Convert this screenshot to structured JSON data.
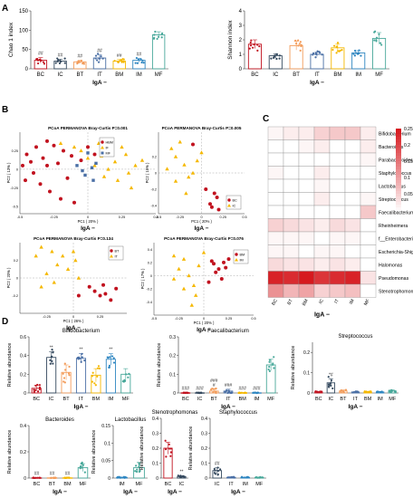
{
  "panels": {
    "A": "A",
    "B": "B",
    "C": "C",
    "D": "D"
  },
  "colors": {
    "BC": "#c1121f",
    "IC": "#34495e",
    "BT": "#f39c5a",
    "IT": "#4a6fa5",
    "BM": "#f5b800",
    "IM": "#2e86c1",
    "MF": "#48a89a"
  },
  "chart_data": [
    {
      "id": "A1",
      "type": "bar",
      "panel": "A",
      "ylabel": "Chao 1 index",
      "xlabel": "IgA −",
      "categories": [
        "BC",
        "IC",
        "BT",
        "IT",
        "BM",
        "IM",
        "MF"
      ],
      "values": [
        22,
        20,
        18,
        28,
        20,
        22,
        88
      ],
      "errors": [
        7,
        5,
        4,
        8,
        4,
        5,
        8
      ],
      "annotations": [
        "##",
        "##",
        "##",
        "##",
        "##",
        "##",
        ""
      ],
      "ylim": [
        0,
        150
      ],
      "yticks": [
        0,
        50,
        100,
        150
      ]
    },
    {
      "id": "A2",
      "type": "bar",
      "panel": "A",
      "ylabel": "Shannon index",
      "xlabel": "IgA −",
      "categories": [
        "BC",
        "IC",
        "BT",
        "IT",
        "BM",
        "IM",
        "MF"
      ],
      "values": [
        1.7,
        0.9,
        1.6,
        1.0,
        1.45,
        1.1,
        2.1
      ],
      "errors": [
        0.3,
        0.15,
        0.3,
        0.15,
        0.25,
        0.15,
        0.4
      ],
      "ylim": [
        0,
        4
      ],
      "yticks": [
        0,
        1,
        2,
        3,
        4
      ]
    },
    {
      "id": "B1",
      "type": "scatter",
      "panel": "B",
      "title": "PCoA PERMANOVA Bray-Curtis P=0.001",
      "xlabel": "PC1 ( 20% )",
      "ylabel": "PC2 ( 13% )",
      "group_label": "IgA −",
      "xlim": [
        -0.5,
        0.5
      ],
      "ylim": [
        -0.6,
        0.5
      ],
      "xticks": [
        -0.5,
        -0.25,
        0,
        0.25,
        0.5
      ],
      "yticks": [
        -0.5,
        -0.25,
        0,
        0.25
      ],
      "legend": [
        "HBM",
        "IF",
        "MF"
      ],
      "legend_colors": [
        "#c1121f",
        "#f5b800",
        "#4a6fa5"
      ],
      "series": [
        {
          "name": "HBM",
          "marker": "circle",
          "points": [
            [
              -0.45,
              0.2
            ],
            [
              -0.42,
              0.1
            ],
            [
              -0.4,
              -0.05
            ],
            [
              -0.38,
              0.3
            ],
            [
              -0.35,
              -0.2
            ],
            [
              -0.33,
              0.15
            ],
            [
              -0.3,
              0.05
            ],
            [
              -0.28,
              -0.3
            ],
            [
              -0.25,
              0.32
            ],
            [
              -0.22,
              0.08
            ],
            [
              -0.2,
              -0.4
            ],
            [
              -0.18,
              0.25
            ],
            [
              -0.15,
              -0.12
            ],
            [
              -0.12,
              0.18
            ],
            [
              -0.1,
              -0.45
            ],
            [
              -0.05,
              0.12
            ],
            [
              0.0,
              0.3
            ],
            [
              0.05,
              0.2
            ],
            [
              0.1,
              0.28
            ],
            [
              -0.48,
              0.05
            ],
            [
              -0.46,
              -0.15
            ],
            [
              -0.3,
              0.38
            ]
          ]
        },
        {
          "name": "IF",
          "marker": "triangle",
          "points": [
            [
              -0.2,
              0.35
            ],
            [
              -0.1,
              0.3
            ],
            [
              0.0,
              0.15
            ],
            [
              0.05,
              0.05
            ],
            [
              0.1,
              0.18
            ],
            [
              0.15,
              0.0
            ],
            [
              0.2,
              0.1
            ],
            [
              0.25,
              0.3
            ],
            [
              0.3,
              -0.05
            ],
            [
              0.35,
              0.05
            ],
            [
              0.4,
              0.12
            ],
            [
              0.28,
              0.2
            ],
            [
              0.18,
              0.3
            ],
            [
              -0.05,
              0.25
            ],
            [
              0.12,
              -0.1
            ],
            [
              0.22,
              -0.15
            ],
            [
              0.32,
              -0.25
            ],
            [
              0.08,
              0.35
            ]
          ]
        },
        {
          "name": "MF",
          "marker": "square",
          "points": [
            [
              -0.08,
              0.05
            ],
            [
              -0.02,
              -0.08
            ],
            [
              0.04,
              -0.15
            ],
            [
              0.0,
              0.22
            ],
            [
              0.03,
              0.02
            ],
            [
              -0.04,
              -0.02
            ],
            [
              0.06,
              0.08
            ]
          ]
        }
      ]
    },
    {
      "id": "B2",
      "type": "scatter",
      "panel": "B",
      "title": "PCoA PERMANOVA Bray-Curtis P=0.005",
      "xlabel": "PC1 ( 20% )",
      "ylabel": "PC2 ( 15% )",
      "group_label": "IgA −",
      "xlim": [
        -0.5,
        0.5
      ],
      "ylim": [
        -0.5,
        0.5
      ],
      "xticks": [
        -0.5,
        -0.25,
        0,
        0.25,
        0.5
      ],
      "yticks": [
        -0.4,
        -0.2,
        0,
        0.2
      ],
      "legend": [
        "BC",
        "IC"
      ],
      "legend_colors": [
        "#c1121f",
        "#f5b800"
      ],
      "series": [
        {
          "name": "BC",
          "marker": "circle",
          "points": [
            [
              0.1,
              -0.38
            ],
            [
              0.12,
              -0.42
            ],
            [
              0.15,
              -0.25
            ],
            [
              0.18,
              -0.3
            ],
            [
              0.2,
              -0.45
            ],
            [
              -0.1,
              0.35
            ],
            [
              0.05,
              -0.2
            ]
          ]
        },
        {
          "name": "IC",
          "marker": "triangle",
          "points": [
            [
              -0.35,
              0.3
            ],
            [
              -0.3,
              0.2
            ],
            [
              -0.25,
              0.38
            ],
            [
              -0.2,
              0.1
            ],
            [
              -0.15,
              -0.05
            ],
            [
              -0.1,
              0.0
            ],
            [
              -0.05,
              0.15
            ],
            [
              0.0,
              0.25
            ],
            [
              -0.3,
              -0.1
            ],
            [
              -0.18,
              -0.25
            ],
            [
              -0.4,
              0.05
            ]
          ]
        }
      ]
    },
    {
      "id": "B3",
      "type": "scatter",
      "panel": "B",
      "title": "PCoA PERMANOVA Bray-Curtis P=0.134",
      "xlabel": "PC1 ( 26% )",
      "ylabel": "PC2 ( 20% )",
      "group_label": "IgA −",
      "xlim": [
        -0.5,
        0.5
      ],
      "ylim": [
        -0.4,
        0.4
      ],
      "xticks": [
        -0.25,
        0,
        0.25
      ],
      "yticks": [
        -0.2,
        0,
        0.2
      ],
      "legend": [
        "BT",
        "IT"
      ],
      "legend_colors": [
        "#c1121f",
        "#f5b800"
      ],
      "series": [
        {
          "name": "BT",
          "marker": "circle",
          "points": [
            [
              0.2,
              -0.15
            ],
            [
              0.25,
              -0.2
            ],
            [
              0.3,
              -0.18
            ],
            [
              0.35,
              -0.25
            ],
            [
              0.15,
              -0.1
            ],
            [
              0.05,
              -0.2
            ],
            [
              0.4,
              -0.12
            ],
            [
              0.28,
              -0.08
            ]
          ]
        },
        {
          "name": "IT",
          "marker": "triangle",
          "points": [
            [
              -0.35,
              0.25
            ],
            [
              -0.3,
              0.35
            ],
            [
              -0.25,
              0.05
            ],
            [
              -0.2,
              0.3
            ],
            [
              -0.15,
              0.15
            ],
            [
              -0.1,
              0.25
            ],
            [
              -0.05,
              0.1
            ],
            [
              0.0,
              0.3
            ],
            [
              0.05,
              0.0
            ],
            [
              -0.3,
              -0.1
            ],
            [
              -0.18,
              -0.05
            ],
            [
              0.02,
              0.2
            ]
          ]
        }
      ]
    },
    {
      "id": "B4",
      "type": "scatter",
      "panel": "B",
      "title": "PCoA PERMANOVA Bray-Curtis P=0.076",
      "xlabel": "PC1 ( 20% )",
      "ylabel": "PC2 ( 17% )",
      "group_label": "IgA −",
      "xlim": [
        -0.5,
        0.5
      ],
      "ylim": [
        -0.6,
        0.5
      ],
      "xticks": [
        -0.5,
        -0.25,
        0,
        0.25,
        0.5
      ],
      "yticks": [
        -0.4,
        -0.2,
        0,
        0.2,
        0.4
      ],
      "legend": [
        "BM",
        "IM"
      ],
      "legend_colors": [
        "#c1121f",
        "#f5b800"
      ],
      "series": [
        {
          "name": "BM",
          "marker": "circle",
          "points": [
            [
              0.1,
              0.18
            ],
            [
              0.15,
              0.1
            ],
            [
              0.2,
              0.2
            ],
            [
              0.12,
              0.05
            ],
            [
              0.22,
              0.12
            ],
            [
              0.05,
              -0.1
            ],
            [
              0.18,
              -0.05
            ],
            [
              0.25,
              0.25
            ],
            [
              0.08,
              0.22
            ]
          ]
        },
        {
          "name": "IM",
          "marker": "triangle",
          "points": [
            [
              -0.3,
              0.3
            ],
            [
              -0.25,
              0.1
            ],
            [
              -0.2,
              0.25
            ],
            [
              -0.15,
              0.0
            ],
            [
              -0.1,
              -0.15
            ],
            [
              -0.08,
              -0.3
            ],
            [
              -0.12,
              -0.45
            ],
            [
              0.0,
              0.35
            ],
            [
              -0.05,
              0.15
            ],
            [
              -0.2,
              -0.2
            ],
            [
              -0.3,
              -0.05
            ]
          ]
        }
      ]
    },
    {
      "id": "C",
      "type": "heatmap",
      "panel": "C",
      "xlabel": "IgA −",
      "columns": [
        "BC",
        "BT",
        "BM",
        "IC",
        "IT",
        "IM",
        "MF"
      ],
      "rows": [
        "Bifidobacterium",
        "Bacteroides",
        "Parabacteroides",
        "Staphylococcus",
        "Lactobacillus",
        "Streptococcus",
        "Faecalibacterium",
        "Rheinheimera",
        "f__Enterobacteriaceae;__",
        "Escherichia-Shigella",
        "Halomonas",
        "Pseudomonas",
        "Stenotrophomonas"
      ],
      "values": [
        [
          0.01,
          0.02,
          0.02,
          0.05,
          0.06,
          0.06,
          0.02
        ],
        [
          0.0,
          0.0,
          0.01,
          0.02,
          0.0,
          0.0,
          0.02
        ],
        [
          0.0,
          0.0,
          0.0,
          0.0,
          0.0,
          0.0,
          0.01
        ],
        [
          0.01,
          0.0,
          0.0,
          0.02,
          0.0,
          0.0,
          0.0
        ],
        [
          0.0,
          0.0,
          0.0,
          0.01,
          0.0,
          0.0,
          0.0
        ],
        [
          0.0,
          0.0,
          0.0,
          0.02,
          0.0,
          0.0,
          0.01
        ],
        [
          0.0,
          0.0,
          0.0,
          0.0,
          0.0,
          0.0,
          0.06
        ],
        [
          0.05,
          0.04,
          0.03,
          0.02,
          0.04,
          0.03,
          0.0
        ],
        [
          0.01,
          0.01,
          0.01,
          0.0,
          0.01,
          0.01,
          0.0
        ],
        [
          0.01,
          0.01,
          0.0,
          0.01,
          0.01,
          0.0,
          0.0
        ],
        [
          0.04,
          0.03,
          0.03,
          0.02,
          0.03,
          0.02,
          0.0
        ],
        [
          0.24,
          0.23,
          0.25,
          0.22,
          0.23,
          0.24,
          0.03
        ],
        [
          0.12,
          0.08,
          0.1,
          0.05,
          0.06,
          0.07,
          0.0
        ]
      ],
      "colorbar": {
        "min": 0,
        "max": 0.25,
        "ticks": [
          0.05,
          0.1,
          0.15,
          0.2,
          0.25
        ]
      }
    },
    {
      "id": "D1",
      "type": "bar",
      "panel": "D",
      "title": "Bifidobacterium",
      "ylabel": "Relative abundance",
      "xlabel": "IgA −",
      "categories": [
        "BC",
        "IC",
        "BT",
        "IT",
        "BM",
        "IM",
        "MF"
      ],
      "values": [
        0.05,
        0.38,
        0.22,
        0.37,
        0.19,
        0.36,
        0.2
      ],
      "errors": [
        0.03,
        0.06,
        0.08,
        0.05,
        0.07,
        0.06,
        0.06
      ],
      "annotations": [
        "",
        "**",
        "",
        "**",
        "",
        "**",
        ""
      ],
      "ylim": [
        0,
        0.6
      ],
      "yticks": [
        0.0,
        0.2,
        0.4,
        0.6
      ]
    },
    {
      "id": "D2",
      "type": "bar",
      "panel": "D",
      "title": "Faecalibacterium",
      "ylabel": "Relative abundance",
      "xlabel": "IgA −",
      "categories": [
        "BC",
        "IC",
        "BT",
        "IT",
        "BM",
        "IM",
        "MF"
      ],
      "values": [
        0.001,
        0.001,
        0.01,
        0.01,
        0.001,
        0.001,
        0.15
      ],
      "errors": [
        0.001,
        0.001,
        0.01,
        0.01,
        0.001,
        0.001,
        0.03
      ],
      "annotations": [
        "###",
        "###",
        "###\n#",
        "###",
        "###",
        "###",
        ""
      ],
      "ylim": [
        0,
        0.3
      ],
      "yticks": [
        0.0,
        0.1,
        0.2,
        0.3
      ]
    },
    {
      "id": "D3",
      "type": "bar",
      "panel": "D",
      "title": "Streptococcus",
      "ylabel": "Relative abundance",
      "xlabel": "IgA −",
      "categories": [
        "BC",
        "IC",
        "BT",
        "IT",
        "BM",
        "IM",
        "MF"
      ],
      "values": [
        0.005,
        0.05,
        0.01,
        0.005,
        0.005,
        0.005,
        0.01
      ],
      "errors": [
        0.002,
        0.02,
        0.005,
        0.002,
        0.002,
        0.002,
        0.005
      ],
      "annotations": [
        "",
        "*#",
        "",
        "",
        "",
        "",
        ""
      ],
      "ylim": [
        0,
        0.25
      ],
      "yticks": [
        0.0,
        0.1,
        0.2
      ]
    },
    {
      "id": "D4",
      "type": "bar",
      "panel": "D",
      "title": "Bacteroides",
      "ylabel": "Relative abundance",
      "xlabel": "IgA −",
      "categories": [
        "BC",
        "BT",
        "BM",
        "MF"
      ],
      "values": [
        0.002,
        0.002,
        0.002,
        0.08
      ],
      "errors": [
        0.001,
        0.001,
        0.001,
        0.03
      ],
      "annotations": [
        "##",
        "##",
        "##",
        ""
      ],
      "ylim": [
        0,
        0.4
      ],
      "yticks": [
        0.0,
        0.2,
        0.4
      ]
    },
    {
      "id": "D5",
      "type": "bar",
      "panel": "D",
      "title": "Lactobacillus",
      "ylabel": "Relative abundance",
      "xlabel": "IgA −",
      "categories": [
        "IM",
        "MF"
      ],
      "values": [
        0.002,
        0.03
      ],
      "errors": [
        0.001,
        0.015
      ],
      "ylim": [
        0,
        0.15
      ],
      "yticks": [
        0.0,
        0.05,
        0.1,
        0.15
      ]
    },
    {
      "id": "D6",
      "type": "bar",
      "panel": "D",
      "title": "Stenotrophomonas",
      "ylabel": "Relative abundance",
      "xlabel": "IgA −",
      "categories": [
        "BC",
        "IC"
      ],
      "values": [
        0.2,
        0.01
      ],
      "errors": [
        0.04,
        0.005
      ],
      "annotations": [
        "",
        "**"
      ],
      "ylim": [
        0,
        0.4
      ],
      "yticks": [
        0.0,
        0.1,
        0.2,
        0.3,
        0.4
      ]
    },
    {
      "id": "D7",
      "type": "bar",
      "panel": "D",
      "title": "Staphylococcus",
      "ylabel": "Relative abundance",
      "xlabel": "IgA −",
      "categories": [
        "IC",
        "IT",
        "IM",
        "MF"
      ],
      "values": [
        0.05,
        0.005,
        0.005,
        0.005
      ],
      "errors": [
        0.02,
        0.002,
        0.002,
        0.002
      ],
      "annotations": [
        "##",
        "",
        "",
        ""
      ],
      "ylim": [
        0,
        0.4
      ],
      "yticks": [
        0.0,
        0.1,
        0.2,
        0.3,
        0.4
      ]
    }
  ]
}
